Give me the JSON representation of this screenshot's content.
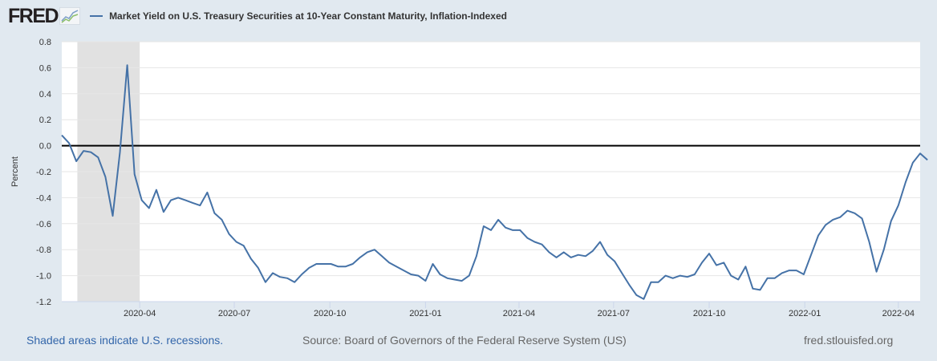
{
  "header": {
    "logo": "FRED",
    "series_title": "Market Yield on U.S. Treasury Securities at 10-Year Constant Maturity, Inflation-Indexed"
  },
  "footer": {
    "recession_note": "Shaded areas indicate U.S. recessions.",
    "source": "Source: Board of Governors of the Federal Reserve System (US)",
    "site": "fred.stlouisfed.org"
  },
  "colors": {
    "line": "#4572a7",
    "recession": "#e1e1e1",
    "background": "#e1e9f0",
    "zero_line": "#000000"
  },
  "chart_data": {
    "type": "line",
    "title": "Market Yield on U.S. Treasury Securities at 10-Year Constant Maturity, Inflation-Indexed",
    "xlabel": "",
    "ylabel": "Percent",
    "ylim": [
      -1.2,
      0.8
    ],
    "yticks": [
      "0.8",
      "0.6",
      "0.4",
      "0.2",
      "0.0",
      "-0.2",
      "-0.4",
      "-0.6",
      "-0.8",
      "-1.0",
      "-1.2"
    ],
    "xlim": [
      "2020-01-17",
      "2022-04-22"
    ],
    "xticks": [
      "2020-04",
      "2020-07",
      "2020-10",
      "2021-01",
      "2021-04",
      "2021-07",
      "2021-10",
      "2022-01",
      "2022-04"
    ],
    "recessions": [
      {
        "start": "2020-02-01",
        "end": "2020-04-01"
      }
    ],
    "reference_line": 0,
    "grid": true,
    "series": [
      {
        "name": "Market Yield on U.S. Treasury Securities at 10-Year Constant Maturity, Inflation-Indexed",
        "start_date": "2020-01-17",
        "step_days": 7,
        "values": [
          0.08,
          0.02,
          -0.12,
          -0.04,
          -0.05,
          -0.09,
          -0.24,
          -0.54,
          -0.05,
          0.62,
          -0.22,
          -0.42,
          -0.48,
          -0.34,
          -0.51,
          -0.42,
          -0.4,
          -0.42,
          -0.44,
          -0.46,
          -0.36,
          -0.52,
          -0.57,
          -0.68,
          -0.74,
          -0.77,
          -0.87,
          -0.94,
          -1.05,
          -0.98,
          -1.01,
          -1.02,
          -1.05,
          -0.99,
          -0.94,
          -0.91,
          -0.91,
          -0.91,
          -0.93,
          -0.93,
          -0.91,
          -0.86,
          -0.82,
          -0.8,
          -0.85,
          -0.9,
          -0.93,
          -0.96,
          -0.99,
          -1.0,
          -1.04,
          -0.91,
          -0.99,
          -1.02,
          -1.03,
          -1.04,
          -1.0,
          -0.85,
          -0.62,
          -0.65,
          -0.57,
          -0.63,
          -0.65,
          -0.65,
          -0.71,
          -0.74,
          -0.76,
          -0.82,
          -0.86,
          -0.82,
          -0.86,
          -0.84,
          -0.85,
          -0.81,
          -0.74,
          -0.84,
          -0.89,
          -0.98,
          -1.07,
          -1.15,
          -1.18,
          -1.05,
          -1.05,
          -1.0,
          -1.02,
          -1.0,
          -1.01,
          -0.99,
          -0.9,
          -0.83,
          -0.92,
          -0.9,
          -1.0,
          -1.03,
          -0.93,
          -1.1,
          -1.11,
          -1.02,
          -1.02,
          -0.98,
          -0.96,
          -0.96,
          -0.99,
          -0.84,
          -0.69,
          -0.61,
          -0.57,
          -0.55,
          -0.5,
          -0.52,
          -0.56,
          -0.74,
          -0.97,
          -0.8,
          -0.58,
          -0.46,
          -0.28,
          -0.13,
          -0.06,
          -0.11
        ]
      }
    ]
  }
}
